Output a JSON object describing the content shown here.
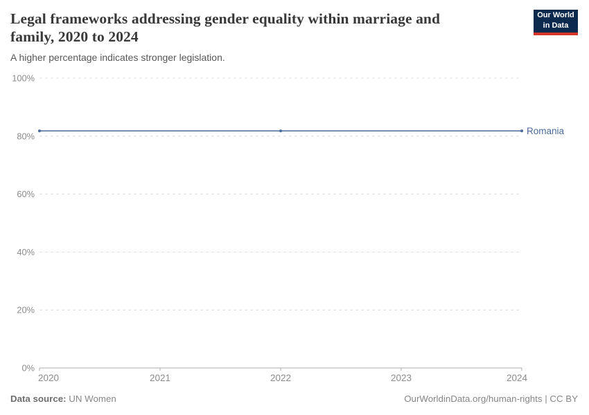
{
  "header": {
    "title_lines": [
      "Legal frameworks addressing gender equality within marriage and",
      "family, 2020 to 2024"
    ],
    "title_full": "Legal frameworks addressing gender equality within marriage and family, 2020 to 2024",
    "subtitle": "A higher percentage indicates stronger legislation.",
    "logo": {
      "line1": "Our World",
      "line2": "in Data"
    }
  },
  "chart_data": {
    "type": "line",
    "title": "Legal frameworks addressing gender equality within marriage and family, 2020 to 2024",
    "subtitle": "A higher percentage indicates stronger legislation.",
    "xticks": [
      2020,
      2021,
      2022,
      2023,
      2024
    ],
    "yticks": [
      0,
      20,
      40,
      60,
      80,
      100
    ],
    "ytick_suffix": "%",
    "ylim": [
      0,
      100
    ],
    "grid": "horizontal-dashed",
    "legend_position": "inline-right-of-line",
    "series": [
      {
        "name": "Romania",
        "x": [
          2020,
          2022,
          2024
        ],
        "values": [
          81.8,
          81.8,
          81.8
        ],
        "color": "#4C6A9C",
        "markers": true
      }
    ]
  },
  "footer": {
    "source_label": "Data source:",
    "source_value": " UN Women",
    "credit": "OurWorldinData.org/human-rights | CC BY"
  },
  "colors": {
    "line": "#4C6A9C",
    "gridline": "#dedede",
    "axis": "#adadad",
    "tick_label": "#8b8b8b",
    "title_text": "#383838",
    "subtitle_text": "#575757",
    "footer_text": "#868686",
    "logo_bg": "#0c2a4d",
    "logo_bar": "#d7342b"
  }
}
